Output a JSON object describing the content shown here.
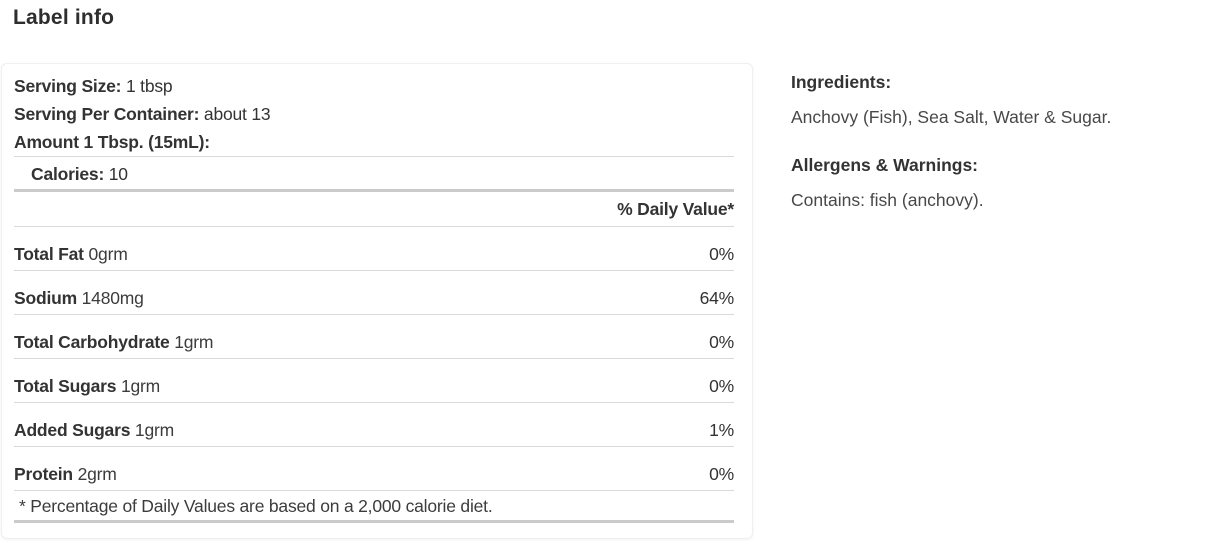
{
  "page": {
    "title": "Label info"
  },
  "nutrition": {
    "serving_lines": [
      {
        "label": "Serving Size:",
        "value": "1 tbsp"
      },
      {
        "label": "Serving Per Container:",
        "value": "about 13"
      },
      {
        "label": "Amount 1 Tbsp. (15mL):",
        "value": ""
      }
    ],
    "calories": {
      "label": "Calories:",
      "value": "10"
    },
    "daily_value_header": "% Daily Value*",
    "rows": [
      {
        "label": "Total Fat",
        "amount": "0grm",
        "dv": "0%"
      },
      {
        "label": "Sodium",
        "amount": "1480mg",
        "dv": "64%"
      },
      {
        "label": "Total Carbohydrate",
        "amount": "1grm",
        "dv": "0%"
      },
      {
        "label": "Total Sugars",
        "amount": "1grm",
        "dv": "0%"
      },
      {
        "label": "Added Sugars",
        "amount": "1grm",
        "dv": "1%"
      },
      {
        "label": "Protein",
        "amount": "2grm",
        "dv": "0%"
      }
    ],
    "footnote": "* Percentage of Daily Values are based on a 2,000 calorie diet."
  },
  "details": {
    "ingredients_heading": "Ingredients:",
    "ingredients_text": "Anchovy (Fish), Sea Salt, Water & Sugar.",
    "allergens_heading": "Allergens & Warnings:",
    "allergens_text": "Contains: fish (anchovy)."
  },
  "colors": {
    "text": "#333333",
    "divider_thin": "#d9d9d9",
    "divider_thick": "#cbcbcb",
    "card_border": "#efefef",
    "background": "#ffffff"
  }
}
